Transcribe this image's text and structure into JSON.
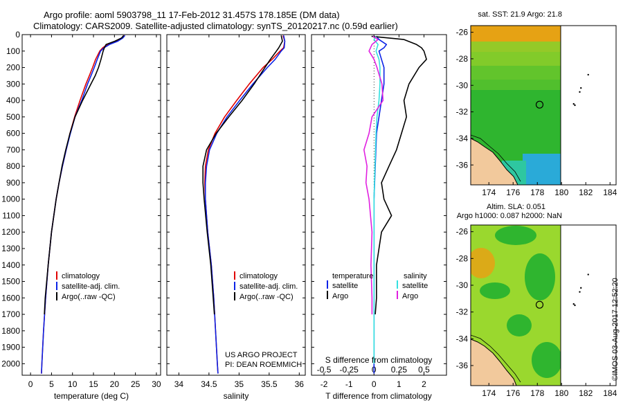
{
  "header": {
    "line1": "Argo profile: aoml 5903798_11 17-Feb-2012 31.457S 178.185E (DM data)",
    "line2": "Climatology: CARS2009. Satellite-adjusted climatology: synTS_20120217.nc (0.59d earlier)"
  },
  "colors": {
    "climatology": "#e00000",
    "satellite": "#0a22e6",
    "argo": "#000000",
    "sat_salinity": "#33e0e0",
    "argo_salinity": "#e020e0"
  },
  "credit": {
    "project": "US ARGO PROJECT",
    "pi": "PI: DEAN ROEMMICH",
    "stamp": "©IMOS 03-Aug-2017 12:52:20"
  },
  "chart_data": [
    {
      "type": "line",
      "title": "",
      "xlabel": "temperature (deg C)",
      "ylabel": "",
      "xlim": [
        -2,
        31
      ],
      "ylim": [
        2070,
        0
      ],
      "xticks": [
        0,
        5,
        10,
        15,
        20,
        25,
        30
      ],
      "yticks": [
        0,
        100,
        200,
        300,
        400,
        500,
        600,
        700,
        800,
        900,
        1000,
        1100,
        1200,
        1300,
        1400,
        1500,
        1600,
        1700,
        1800,
        1900,
        2000
      ],
      "legend": [
        "climatology",
        "satellite-adj. clim.",
        "Argo(..raw -QC)"
      ],
      "series": [
        {
          "name": "climatology",
          "color": "#e00000",
          "depth": [
            5,
            20,
            40,
            60,
            80,
            100,
            150,
            200,
            250,
            300,
            400,
            500,
            600,
            700,
            800,
            900,
            1000,
            1200,
            1400,
            1600,
            1800,
            2000,
            2060
          ],
          "values": [
            22.4,
            21.8,
            20.3,
            18.3,
            17.2,
            16.5,
            15.5,
            14.8,
            14.0,
            13.2,
            11.8,
            10.5,
            9.4,
            8.5,
            7.6,
            6.8,
            6.1,
            5.0,
            4.2,
            3.6,
            3.1,
            2.7,
            2.6
          ]
        },
        {
          "name": "satellite-adj. clim.",
          "color": "#0a22e6",
          "depth": [
            5,
            20,
            40,
            60,
            80,
            100,
            150,
            200,
            250,
            300,
            400,
            500,
            600,
            700,
            800,
            900,
            1000,
            1200,
            1400,
            1600,
            1800,
            2000,
            2060
          ],
          "values": [
            22.5,
            22.0,
            20.8,
            18.8,
            17.5,
            16.7,
            15.9,
            15.2,
            14.4,
            13.6,
            12.2,
            10.6,
            9.5,
            8.5,
            7.6,
            6.8,
            6.1,
            5.0,
            4.2,
            3.6,
            3.1,
            2.7,
            2.6
          ]
        },
        {
          "name": "Argo(..raw -QC)",
          "color": "#000000",
          "depth": [
            5,
            20,
            40,
            60,
            80,
            100,
            150,
            200,
            250,
            300,
            400,
            500,
            600,
            700,
            800,
            900,
            1000,
            1200,
            1400,
            1600,
            1700
          ],
          "values": [
            22.2,
            21.7,
            20.1,
            18.0,
            17.6,
            17.3,
            16.8,
            16.2,
            15.4,
            14.4,
            12.4,
            10.6,
            9.4,
            8.4,
            7.5,
            6.8,
            6.1,
            5.0,
            4.2,
            3.5,
            3.3
          ]
        }
      ]
    },
    {
      "type": "line",
      "title": "",
      "xlabel": "salinity",
      "ylabel": "",
      "xlim": [
        33.8,
        36.1
      ],
      "ylim": [
        2070,
        0
      ],
      "xticks": [
        34,
        34.5,
        35,
        35.5,
        36
      ],
      "xticklabels": [
        "34",
        "34.5",
        "35",
        "35.5",
        "36"
      ],
      "legend": [
        "climatology",
        "satellite-adj. clim.",
        "Argo(..raw -QC)"
      ],
      "series": [
        {
          "name": "climatology",
          "color": "#e00000",
          "depth": [
            5,
            40,
            80,
            100,
            150,
            200,
            300,
            400,
            500,
            600,
            700,
            800,
            900,
            1000,
            1200,
            1400,
            1600,
            1800,
            2000,
            2060
          ],
          "values": [
            35.73,
            35.76,
            35.74,
            35.68,
            35.55,
            35.4,
            35.17,
            34.96,
            34.76,
            34.6,
            34.49,
            34.44,
            34.43,
            34.44,
            34.48,
            34.54,
            34.58,
            34.61,
            34.64,
            34.65
          ]
        },
        {
          "name": "satellite-adj. clim.",
          "color": "#0a22e6",
          "depth": [
            5,
            40,
            80,
            100,
            150,
            200,
            300,
            400,
            500,
            600,
            700,
            800,
            900,
            1000,
            1200,
            1400,
            1600,
            1800,
            2000,
            2060
          ],
          "values": [
            35.74,
            35.76,
            35.75,
            35.7,
            35.6,
            35.47,
            35.23,
            35.01,
            34.8,
            34.63,
            34.51,
            34.46,
            34.44,
            34.44,
            34.48,
            34.54,
            34.58,
            34.61,
            34.64,
            34.65
          ]
        },
        {
          "name": "Argo(..raw -QC)",
          "color": "#000000",
          "depth": [
            5,
            40,
            80,
            100,
            150,
            200,
            300,
            400,
            500,
            600,
            700,
            800,
            900,
            1000,
            1200,
            1400,
            1600,
            1700
          ],
          "values": [
            35.7,
            35.72,
            35.66,
            35.62,
            35.52,
            35.43,
            35.25,
            35.05,
            34.83,
            34.62,
            34.46,
            34.4,
            34.4,
            34.42,
            34.47,
            34.53,
            34.57,
            34.59
          ]
        }
      ]
    },
    {
      "type": "line",
      "title": "",
      "xlabel": "T difference from climatology",
      "xlabel2": "S difference from climatology",
      "ylabel": "",
      "xlim": [
        -2.5,
        2.9
      ],
      "ylim": [
        2070,
        0
      ],
      "xticks": [
        -2,
        -1,
        0,
        1,
        2
      ],
      "s_ticklabels": [
        "-0.5",
        "-0.25",
        "0",
        "0.25",
        "0.5"
      ],
      "legend_left_title": "temperature",
      "legend_right_title": "salinity",
      "legend_left": [
        "satellite",
        "Argo"
      ],
      "legend_right": [
        "satellite",
        "Argo"
      ],
      "series": [
        {
          "name": "temperature satellite",
          "color": "#0a22e6",
          "depth": [
            10,
            30,
            60,
            80,
            100,
            150,
            200,
            300,
            400,
            500,
            600,
            800,
            1000,
            1200,
            1400,
            1600,
            1800,
            2000,
            2060
          ],
          "values": [
            0.1,
            0.2,
            0.5,
            0.4,
            0.2,
            0.3,
            0.4,
            0.4,
            0.3,
            0.2,
            0.1,
            0.05,
            0.0,
            0.0,
            0.0,
            0.0,
            0.0,
            0.0,
            0.0
          ]
        },
        {
          "name": "temperature Argo",
          "color": "#000000",
          "depth": [
            10,
            30,
            60,
            80,
            100,
            150,
            200,
            300,
            400,
            500,
            600,
            700,
            800,
            900,
            1000,
            1100,
            1200,
            1300,
            1400,
            1600,
            1700
          ],
          "values": [
            -0.1,
            1.2,
            1.7,
            1.9,
            2.0,
            2.1,
            1.8,
            1.4,
            1.2,
            1.3,
            1.1,
            0.9,
            0.6,
            0.3,
            0.4,
            0.7,
            0.3,
            0.2,
            0.1,
            0.1,
            0.05
          ]
        },
        {
          "name": "salinity satellite",
          "color": "#33e0e0",
          "depth": [
            10,
            30,
            60,
            100,
            150,
            200,
            300,
            400,
            500,
            600,
            800,
            1000,
            1200,
            1400,
            1600,
            1800,
            2000
          ],
          "values": [
            0.02,
            0.0,
            0.04,
            0.02,
            0.05,
            0.06,
            0.06,
            0.05,
            0.03,
            0.02,
            0.01,
            0.0,
            0.0,
            0.0,
            0.0,
            0.0,
            0.0
          ]
        },
        {
          "name": "salinity Argo",
          "color": "#e020e0",
          "depth": [
            10,
            30,
            60,
            100,
            150,
            200,
            300,
            400,
            500,
            600,
            700,
            800,
            900,
            1000,
            1200,
            1400,
            1600,
            1700
          ],
          "values": [
            -0.01,
            0.04,
            -0.02,
            -0.05,
            0.0,
            0.03,
            0.08,
            0.09,
            -0.02,
            -0.05,
            -0.1,
            -0.07,
            -0.08,
            -0.05,
            -0.02,
            -0.03,
            -0.02,
            -0.02
          ]
        }
      ]
    },
    {
      "type": "heatmap",
      "title": "sat. SST: 21.9 Argo: 21.8",
      "xlim": [
        172.5,
        184.5
      ],
      "ylim": [
        -37.5,
        -25.5
      ],
      "xticks": [
        174,
        176,
        178,
        180,
        182,
        184
      ],
      "yticks": [
        -26,
        -28,
        -30,
        -32,
        -34,
        -36
      ],
      "argo_position": [
        178.185,
        -31.457
      ]
    },
    {
      "type": "heatmap",
      "title": "Altim. SLA: 0.051",
      "subtitle": "Argo h1000: 0.087 h2000: NaN",
      "xlim": [
        172.5,
        184.5
      ],
      "ylim": [
        -37.5,
        -25.5
      ],
      "xticks": [
        174,
        176,
        178,
        180,
        182,
        184
      ],
      "yticks": [
        -26,
        -28,
        -30,
        -32,
        -34,
        -36
      ],
      "argo_position": [
        178.185,
        -31.457
      ]
    }
  ]
}
